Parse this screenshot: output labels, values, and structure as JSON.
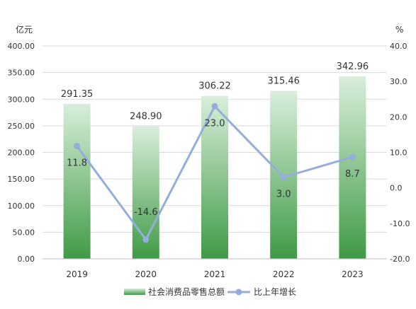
{
  "chart_data": {
    "type": "bar+line",
    "categories": [
      "2019",
      "2020",
      "2021",
      "2022",
      "2023"
    ],
    "series": [
      {
        "name": "社会消费品零售总额",
        "type": "bar",
        "axis": "left",
        "values": [
          291.35,
          248.9,
          306.22,
          315.46,
          342.96
        ],
        "labels": [
          "291.35",
          "248.90",
          "306.22",
          "315.46",
          "342.96"
        ]
      },
      {
        "name": "比上年增长",
        "type": "line",
        "axis": "right",
        "values": [
          11.8,
          -14.6,
          23.0,
          3.0,
          8.7
        ],
        "labels": [
          "11.8",
          "-14.6",
          "23.0",
          "3.0",
          "8.7"
        ]
      }
    ],
    "y_left": {
      "unit": "亿元",
      "range": [
        0,
        400
      ],
      "ticks": [
        "0.00",
        "50.00",
        "100.00",
        "150.00",
        "200.00",
        "250.00",
        "300.00",
        "350.00",
        "400.00"
      ]
    },
    "y_right": {
      "unit": "%",
      "range": [
        -20,
        40
      ],
      "ticks": [
        "-20.0",
        "-10.0",
        "0.0",
        "10.0",
        "20.0",
        "30.0",
        "40.0"
      ]
    },
    "grid": true,
    "legend_position": "bottom",
    "colors": {
      "bar_top": "#d9eedb",
      "bar_bottom": "#3f9a45",
      "line": "#94aedc",
      "grid": "#d9d9d9",
      "text": "#333333"
    }
  }
}
